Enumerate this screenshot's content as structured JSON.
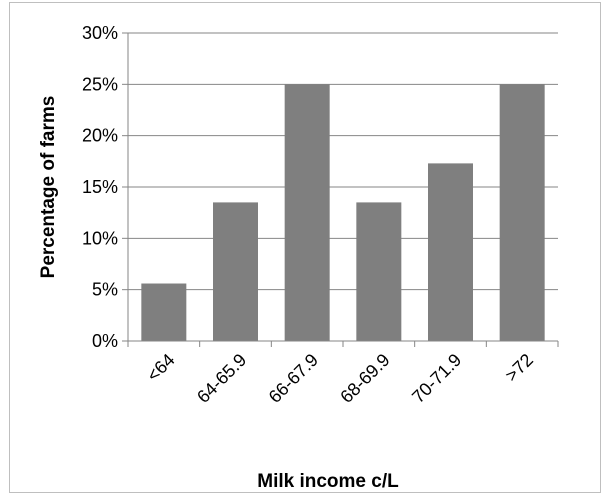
{
  "chart_data": {
    "type": "bar",
    "categories": [
      "<64",
      "64-65.9",
      "66-67.9",
      "68-69.9",
      "70-71.9",
      ">72"
    ],
    "values": [
      5.6,
      13.5,
      25.0,
      13.5,
      17.3,
      25.0
    ],
    "xlabel": "Milk income c/L",
    "ylabel": "Percentage of farms",
    "ylim": [
      0,
      30
    ],
    "yticks": [
      "0%",
      "5%",
      "10%",
      "15%",
      "20%",
      "25%",
      "30%"
    ],
    "grid": true,
    "legend": "none",
    "bar_color": "#7f7f7f",
    "grid_color": "#868686"
  }
}
